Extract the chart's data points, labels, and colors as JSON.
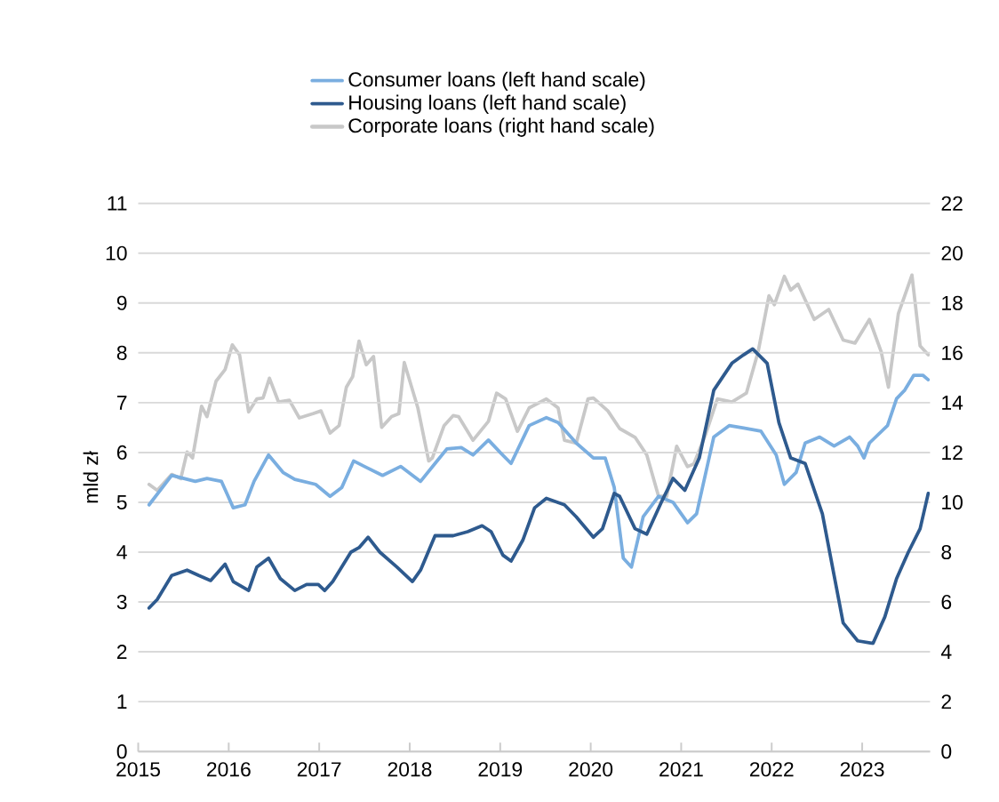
{
  "chart_data": {
    "type": "line",
    "ylabel": "mld zł",
    "legend": "top",
    "grid": "y",
    "xlim": [
      2015,
      2023.75
    ],
    "xticks": [
      2015,
      2016,
      2017,
      2018,
      2019,
      2020,
      2021,
      2022,
      2023
    ],
    "ylim": [
      0,
      11
    ],
    "yticks": [
      0,
      1,
      2,
      3,
      4,
      5,
      6,
      7,
      8,
      9,
      10,
      11
    ],
    "y2lim": [
      0,
      22
    ],
    "y2ticks": [
      0,
      2,
      4,
      6,
      8,
      10,
      12,
      14,
      16,
      18,
      20,
      22
    ],
    "series": [
      {
        "name": "Consumer loans (left hand scale)",
        "color": "#7aaee0",
        "x": [
          2015.12,
          2015.37,
          2015.63,
          2015.76,
          2015.92,
          2016.05,
          2016.18,
          2016.28,
          2016.44,
          2016.6,
          2016.73,
          2016.96,
          2017.12,
          2017.25,
          2017.38,
          2017.5,
          2017.7,
          2017.9,
          2018.12,
          2018.28,
          2018.41,
          2018.57,
          2018.7,
          2018.87,
          2019.0,
          2019.12,
          2019.32,
          2019.51,
          2019.64,
          2019.84,
          2020.03,
          2020.16,
          2020.26,
          2020.36,
          2020.45,
          2020.58,
          2020.75,
          2020.91,
          2021.07,
          2021.17,
          2021.36,
          2021.53,
          2021.69,
          2021.88,
          2022.05,
          2022.14,
          2022.27,
          2022.37,
          2022.53,
          2022.69,
          2022.86,
          2022.95,
          2023.02,
          2023.08,
          2023.28,
          2023.38,
          2023.47,
          2023.57,
          2023.67,
          2023.73
        ],
        "values": [
          4.95,
          5.54,
          5.42,
          5.48,
          5.42,
          4.89,
          4.95,
          5.42,
          5.95,
          5.6,
          5.46,
          5.36,
          5.12,
          5.3,
          5.83,
          5.72,
          5.54,
          5.72,
          5.42,
          5.78,
          6.07,
          6.1,
          5.95,
          6.25,
          6.0,
          5.78,
          6.54,
          6.7,
          6.6,
          6.19,
          5.89,
          5.89,
          5.3,
          3.88,
          3.7,
          4.71,
          5.12,
          5.0,
          4.59,
          4.77,
          6.31,
          6.54,
          6.49,
          6.43,
          5.95,
          5.36,
          5.6,
          6.19,
          6.31,
          6.13,
          6.31,
          6.13,
          5.89,
          6.19,
          6.54,
          7.08,
          7.25,
          7.55,
          7.55,
          7.46
        ]
      },
      {
        "name": "Housing loans (left hand scale)",
        "color": "#2e5a8e",
        "x": [
          2015.12,
          2015.21,
          2015.37,
          2015.54,
          2015.67,
          2015.8,
          2015.96,
          2016.05,
          2016.22,
          2016.31,
          2016.44,
          2016.57,
          2016.73,
          2016.86,
          2016.99,
          2017.06,
          2017.15,
          2017.35,
          2017.44,
          2017.54,
          2017.67,
          2017.86,
          2018.03,
          2018.12,
          2018.28,
          2018.48,
          2018.64,
          2018.8,
          2018.9,
          2019.03,
          2019.12,
          2019.25,
          2019.38,
          2019.51,
          2019.71,
          2019.84,
          2020.03,
          2020.13,
          2020.26,
          2020.32,
          2020.49,
          2020.62,
          2020.78,
          2020.91,
          2021.04,
          2021.2,
          2021.36,
          2021.56,
          2021.69,
          2021.79,
          2021.95,
          2022.08,
          2022.21,
          2022.37,
          2022.56,
          2022.69,
          2022.79,
          2022.95,
          2023.12,
          2023.25,
          2023.38,
          2023.51,
          2023.64,
          2023.73
        ],
        "values": [
          2.88,
          3.05,
          3.53,
          3.64,
          3.53,
          3.43,
          3.76,
          3.41,
          3.23,
          3.7,
          3.88,
          3.47,
          3.23,
          3.35,
          3.35,
          3.23,
          3.41,
          4.0,
          4.09,
          4.3,
          4.0,
          3.7,
          3.41,
          3.64,
          4.33,
          4.33,
          4.41,
          4.53,
          4.41,
          3.94,
          3.82,
          4.24,
          4.89,
          5.08,
          4.95,
          4.71,
          4.3,
          4.47,
          5.18,
          5.12,
          4.47,
          4.36,
          5.0,
          5.48,
          5.24,
          5.89,
          7.25,
          7.79,
          7.96,
          8.08,
          7.79,
          6.6,
          5.89,
          5.78,
          4.77,
          3.53,
          2.58,
          2.22,
          2.17,
          2.7,
          3.47,
          4.0,
          4.47,
          5.18
        ]
      },
      {
        "name": "Corporate loans (right hand scale)",
        "color": "#c8c8c8",
        "axis": "y2",
        "x": [
          2015.12,
          2015.21,
          2015.37,
          2015.47,
          2015.54,
          2015.6,
          2015.7,
          2015.76,
          2015.86,
          2015.96,
          2016.04,
          2016.12,
          2016.22,
          2016.31,
          2016.38,
          2016.45,
          2016.55,
          2016.67,
          2016.78,
          2016.93,
          2017.02,
          2017.12,
          2017.22,
          2017.3,
          2017.37,
          2017.44,
          2017.52,
          2017.6,
          2017.69,
          2017.8,
          2017.88,
          2017.94,
          2018.09,
          2018.21,
          2018.25,
          2018.38,
          2018.48,
          2018.54,
          2018.7,
          2018.87,
          2018.96,
          2019.06,
          2019.19,
          2019.32,
          2019.51,
          2019.64,
          2019.71,
          2019.84,
          2019.97,
          2020.03,
          2020.19,
          2020.32,
          2020.49,
          2020.62,
          2020.75,
          2020.84,
          2020.95,
          2021.07,
          2021.14,
          2021.27,
          2021.4,
          2021.56,
          2021.72,
          2021.85,
          2021.97,
          2022.03,
          2022.14,
          2022.21,
          2022.29,
          2022.47,
          2022.63,
          2022.79,
          2022.92,
          2023.08,
          2023.21,
          2023.29,
          2023.4,
          2023.47,
          2023.55,
          2023.64,
          2023.73
        ],
        "values": [
          10.72,
          10.48,
          11.12,
          10.95,
          12.02,
          11.78,
          13.86,
          13.44,
          14.86,
          15.33,
          16.32,
          15.92,
          13.63,
          14.15,
          14.19,
          14.98,
          14.03,
          14.1,
          13.39,
          13.56,
          13.67,
          12.78,
          13.08,
          14.62,
          15.05,
          16.47,
          15.52,
          15.85,
          13.01,
          13.44,
          13.56,
          15.61,
          13.79,
          11.66,
          11.78,
          13.08,
          13.48,
          13.44,
          12.49,
          13.25,
          14.38,
          14.15,
          12.85,
          13.79,
          14.15,
          13.79,
          12.49,
          12.37,
          14.15,
          14.19,
          13.67,
          12.96,
          12.61,
          11.9,
          10.24,
          10.24,
          12.25,
          11.43,
          11.54,
          12.73,
          14.15,
          14.03,
          14.38,
          16.04,
          18.29,
          17.93,
          19.07,
          18.52,
          18.76,
          17.34,
          17.74,
          16.51,
          16.39,
          17.34,
          16.04,
          14.62,
          17.58,
          18.29,
          19.12,
          16.28,
          15.92
        ]
      }
    ]
  }
}
